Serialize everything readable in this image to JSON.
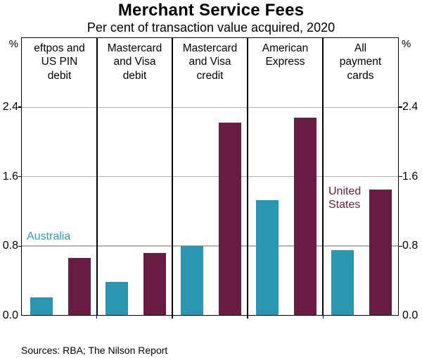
{
  "chart": {
    "sources_note": "Sources: RBA; The Nilson Report"
  },
  "chart_data": {
    "type": "bar",
    "title": "Merchant Service Fees",
    "subtitle": "Per cent of transaction value acquired, 2020",
    "unit_left": "%",
    "unit_right": "%",
    "categories": [
      "eftpos and US PIN debit",
      "Mastercard and Visa debit",
      "Mastercard and Visa credit",
      "American Express",
      "All payment cards"
    ],
    "category_lines": [
      [
        "eftpos and",
        "US PIN",
        "debit"
      ],
      [
        "Mastercard",
        "and Visa",
        "debit"
      ],
      [
        "Mastercard",
        "and Visa",
        "credit"
      ],
      [
        "American",
        "Express"
      ],
      [
        "All",
        "payment",
        "cards"
      ]
    ],
    "series": [
      {
        "name": "Australia",
        "color": "#2B96B1",
        "label_color": "#2E9BC2",
        "values": [
          0.2,
          0.38,
          0.8,
          1.33,
          0.75
        ]
      },
      {
        "name": "United States",
        "color": "#691C41",
        "label_color": "#6B1C41",
        "values": [
          0.66,
          0.72,
          2.22,
          2.28,
          1.45
        ]
      }
    ],
    "ylabel": "%",
    "ylim": [
      0,
      3.2
    ],
    "ytick_labels": [
      "0.0",
      "0.8",
      "1.6",
      "2.4"
    ],
    "ytick_values": [
      0.0,
      0.8,
      1.6,
      2.4
    ],
    "grid": true,
    "gridline_color": "#b3b3b3",
    "legend_position": "in-plot text labels",
    "panel_layout": "5 equal panels separated by vertical black dividers"
  }
}
